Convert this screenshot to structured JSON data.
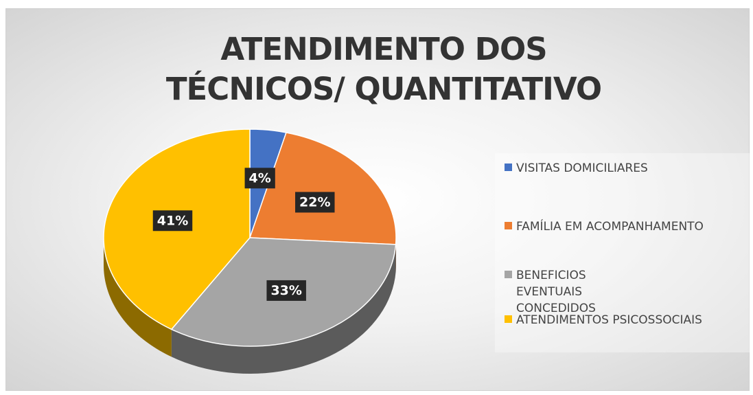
{
  "chart_data": {
    "type": "pie",
    "title": "ATENDIMENTO DOS TÉCNICOS/ QUANTITATIVO",
    "categories": [
      "VISITAS DOMICILIARES",
      "FAMÍLIA EM ACOMPANHAMENTO",
      "BENEFICIOS EVENTUAIS CONCEDIDOS",
      "ATENDIMENTOS PSICOSSOCIAIS"
    ],
    "values": [
      4,
      22,
      33,
      41
    ],
    "value_labels": [
      "4%",
      "22%",
      "33%",
      "41%"
    ],
    "colors": [
      "#4472c4",
      "#ed7d31",
      "#a5a5a5",
      "#ffc000"
    ],
    "legend": "right"
  }
}
